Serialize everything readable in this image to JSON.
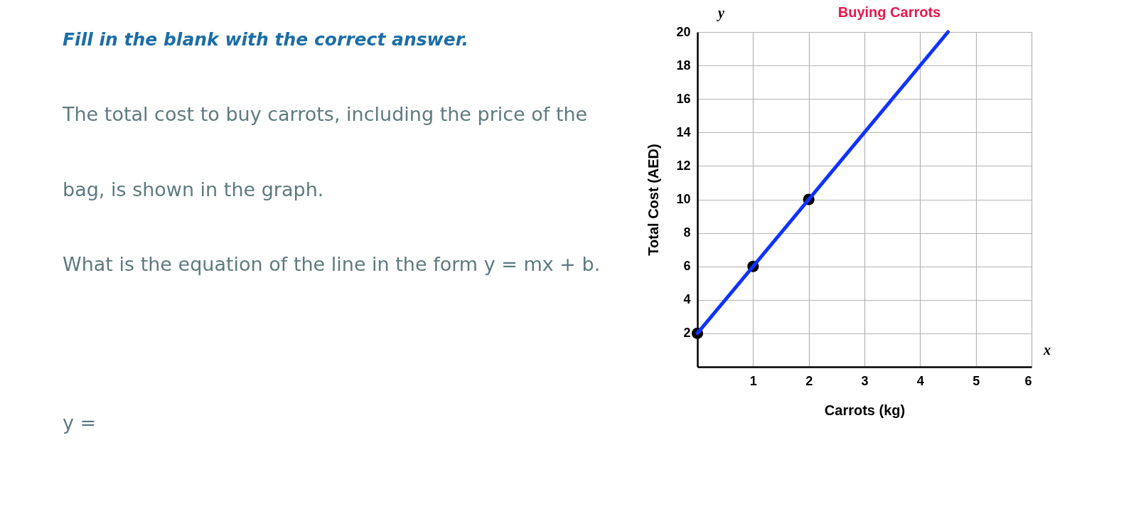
{
  "chart_data": {
    "type": "line",
    "title": "Buying Carrots",
    "xlabel": "Carrots (kg)",
    "ylabel": "Total Cost (AED)",
    "series": [
      {
        "type": "scatter",
        "color": "#000000",
        "marker": "circle",
        "x": [
          0,
          1,
          2
        ],
        "values": [
          2,
          6,
          10
        ]
      },
      {
        "color": "#0f33ff",
        "x": [
          0,
          4.5
        ],
        "values": [
          2,
          20
        ]
      }
    ],
    "xlim": [
      0,
      6
    ],
    "ylim": [
      0,
      20
    ],
    "xticks": [
      1,
      2,
      3,
      4,
      5,
      6
    ],
    "yticks": [
      2,
      4,
      6,
      8,
      10,
      12,
      14,
      16,
      18,
      20
    ],
    "grid": true,
    "annotations": [
      "Fill in the blank with the correct answer.",
      "The total cost to buy carrots, including the price of the\nbag, is shown in the graph.",
      "What is the equation of the line in the form y = mx + b.",
      "y =",
      "y",
      "x"
    ]
  }
}
